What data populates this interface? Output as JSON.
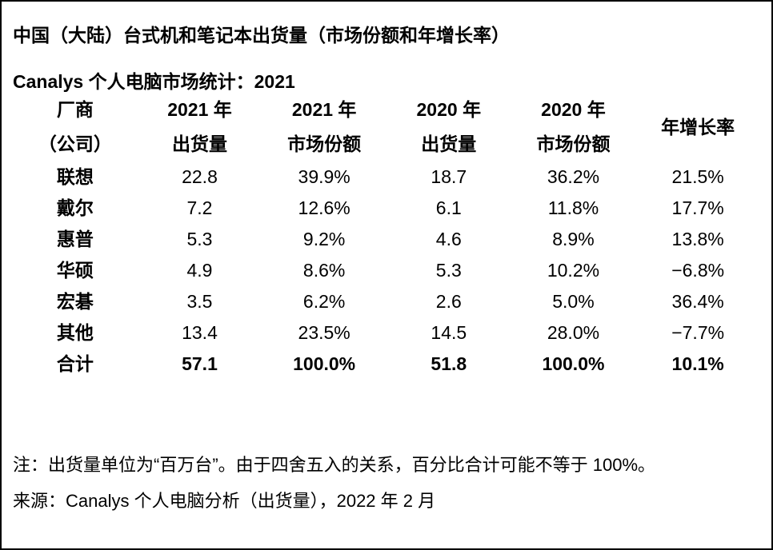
{
  "page": {
    "title": "中国（大陆）台式机和笔记本出货量（市场份额和年增长率）",
    "subtitle": "Canalys 个人电脑市场统计：2021"
  },
  "table": {
    "header": [
      {
        "line1": "厂商",
        "line2": "（公司）"
      },
      {
        "line1": "2021 年",
        "line2": "出货量"
      },
      {
        "line1": "2021 年",
        "line2": "市场份额"
      },
      {
        "line1": "2020 年",
        "line2": "出货量"
      },
      {
        "line1": "2020 年",
        "line2": "市场份额"
      },
      {
        "line1": "年增长率"
      }
    ],
    "rows": [
      {
        "cells": [
          "联想",
          "22.8",
          "39.9%",
          "18.7",
          "36.2%",
          "21.5%"
        ]
      },
      {
        "cells": [
          "戴尔",
          "7.2",
          "12.6%",
          "6.1",
          "11.8%",
          "17.7%"
        ]
      },
      {
        "cells": [
          "惠普",
          "5.3",
          "9.2%",
          "4.6",
          "8.9%",
          "13.8%"
        ]
      },
      {
        "cells": [
          "华硕",
          "4.9",
          "8.6%",
          "5.3",
          "10.2%",
          "−6.8%"
        ]
      },
      {
        "cells": [
          "宏碁",
          "3.5",
          "6.2%",
          "2.6",
          "5.0%",
          "36.4%"
        ]
      },
      {
        "cells": [
          "其他",
          "13.4",
          "23.5%",
          "14.5",
          "28.0%",
          "−7.7%"
        ]
      },
      {
        "cells": [
          "合计",
          "57.1",
          "100.0%",
          "51.8",
          "100.0%",
          "10.1%"
        ]
      }
    ]
  },
  "notes": {
    "footnote": "注：出货量单位为“百万台”。由于四舍五入的关系，百分比合计可能不等于 100%。",
    "source": "来源：Canalys 个人电脑分析（出货量），2022 年 2 月"
  },
  "chart_data": {
    "type": "table",
    "title": "中国（大陆）台式机和笔记本出货量（市场份额和年增长率）",
    "subtitle": "Canalys 个人电脑市场统计：2021",
    "unit_note": "出货量单位为百万台",
    "columns": [
      "厂商（公司）",
      "2021 年出货量",
      "2021 年市场份额",
      "2020 年出货量",
      "2020 年市场份额",
      "年增长率"
    ],
    "rows": [
      [
        "联想",
        22.8,
        "39.9%",
        18.7,
        "36.2%",
        "21.5%"
      ],
      [
        "戴尔",
        7.2,
        "12.6%",
        6.1,
        "11.8%",
        "17.7%"
      ],
      [
        "惠普",
        5.3,
        "9.2%",
        4.6,
        "8.9%",
        "13.8%"
      ],
      [
        "华硕",
        4.9,
        "8.6%",
        5.3,
        "10.2%",
        "-6.8%"
      ],
      [
        "宏碁",
        3.5,
        "6.2%",
        2.6,
        "5.0%",
        "36.4%"
      ],
      [
        "其他",
        13.4,
        "23.5%",
        14.5,
        "28.0%",
        "-7.7%"
      ],
      [
        "合计",
        57.1,
        "100.0%",
        51.8,
        "100.0%",
        "10.1%"
      ]
    ],
    "source": "Canalys 个人电脑分析（出货量），2022 年 2 月"
  }
}
